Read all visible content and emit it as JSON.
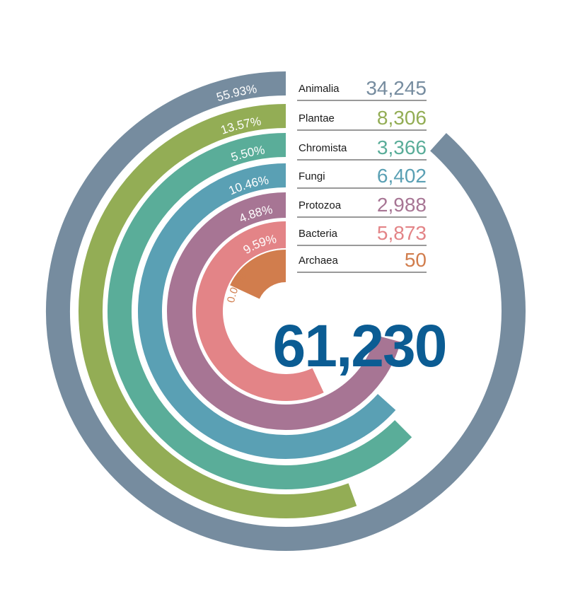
{
  "chart_data": {
    "type": "radial-bar",
    "title": "",
    "total": "61,230",
    "series": [
      {
        "name": "Animalia",
        "value": 34245,
        "value_label": "34,245",
        "percent_label": "55.93%",
        "color": "#768c9f"
      },
      {
        "name": "Plantae",
        "value": 8306,
        "value_label": "8,306",
        "percent_label": "13.57%",
        "color": "#93ad55"
      },
      {
        "name": "Chromista",
        "value": 3366,
        "value_label": "3,366",
        "percent_label": "5.50%",
        "color": "#5aad99"
      },
      {
        "name": "Fungi",
        "value": 6402,
        "value_label": "6,402",
        "percent_label": "10.46%",
        "color": "#5aa0b4"
      },
      {
        "name": "Protozoa",
        "value": 2988,
        "value_label": "2,988",
        "percent_label": "4.88%",
        "color": "#a77594"
      },
      {
        "name": "Bacteria",
        "value": 5873,
        "value_label": "5,873",
        "percent_label": "9.59%",
        "color": "#e38487"
      },
      {
        "name": "Archaea",
        "value": 50,
        "value_label": "50",
        "percent_label": "0.08%",
        "color": "#d17d4d"
      }
    ],
    "legend_position": "top-right"
  }
}
